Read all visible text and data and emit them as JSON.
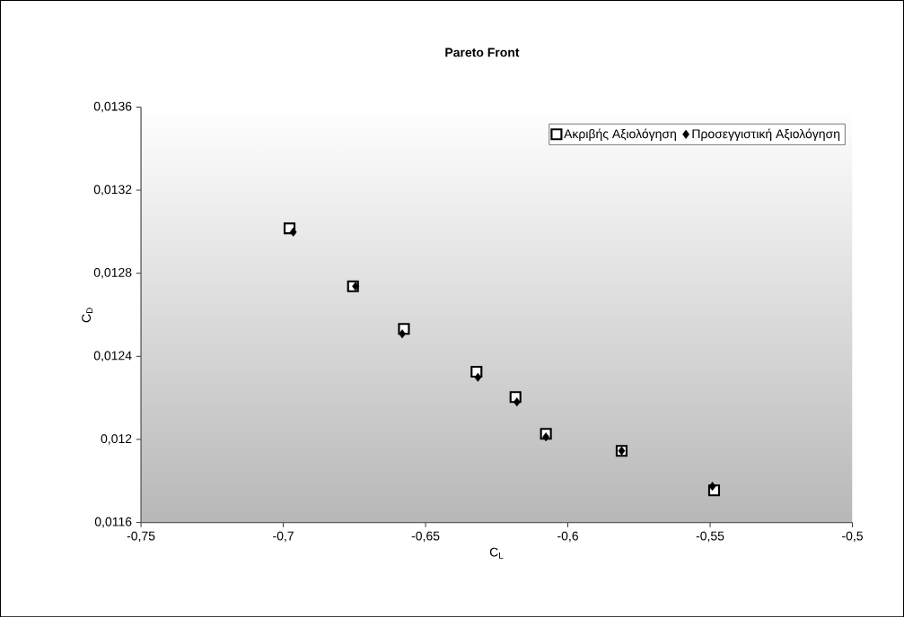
{
  "chart_data": {
    "type": "scatter",
    "title": "Pareto Front",
    "xlabel": "C$_{L}$",
    "ylabel": "C$_{D}$",
    "xlim": [
      -0.75,
      -0.5
    ],
    "xticks": [
      {
        "value": -0.75,
        "label": "-0,75"
      },
      {
        "value": -0.7,
        "label": "-0,7"
      },
      {
        "value": -0.65,
        "label": "-0,65"
      },
      {
        "value": -0.6,
        "label": "-0,6"
      },
      {
        "value": -0.55,
        "label": "-0,55"
      },
      {
        "value": -0.5,
        "label": "-0,5"
      }
    ],
    "ylim": [
      0.0116,
      0.0136
    ],
    "yticks": [
      {
        "value": 0.0116,
        "label": "0,0116"
      },
      {
        "value": 0.012,
        "label": "0,012"
      },
      {
        "value": 0.0124,
        "label": "0,0124"
      },
      {
        "value": 0.0128,
        "label": "0,0128"
      },
      {
        "value": 0.0132,
        "label": "0,0132"
      },
      {
        "value": 0.0136,
        "label": "0,0136"
      }
    ],
    "legend": "top right",
    "series": [
      {
        "name": "Ακριβής Αξιολόγηση",
        "color": "#000000",
        "marker": "square",
        "x": [
          -0.6978,
          -0.6755,
          -0.6576,
          -0.6321,
          -0.6184,
          -0.6077,
          -0.5811,
          -0.5486
        ],
        "values": [
          0.013016,
          0.012737,
          0.012532,
          0.012326,
          0.012204,
          0.012027,
          0.011945,
          0.011755
        ]
      },
      {
        "name": "Προσεγγιστική Αξιολόγηση",
        "color": "#000000",
        "marker": "diamond",
        "x": [
          -0.6965,
          -0.6746,
          -0.6582,
          -0.6316,
          -0.6179,
          -0.6077,
          -0.5811,
          -0.5492
        ],
        "values": [
          0.012998,
          0.012737,
          0.012508,
          0.012299,
          0.01218,
          0.012012,
          0.011945,
          0.011774
        ]
      }
    ]
  }
}
